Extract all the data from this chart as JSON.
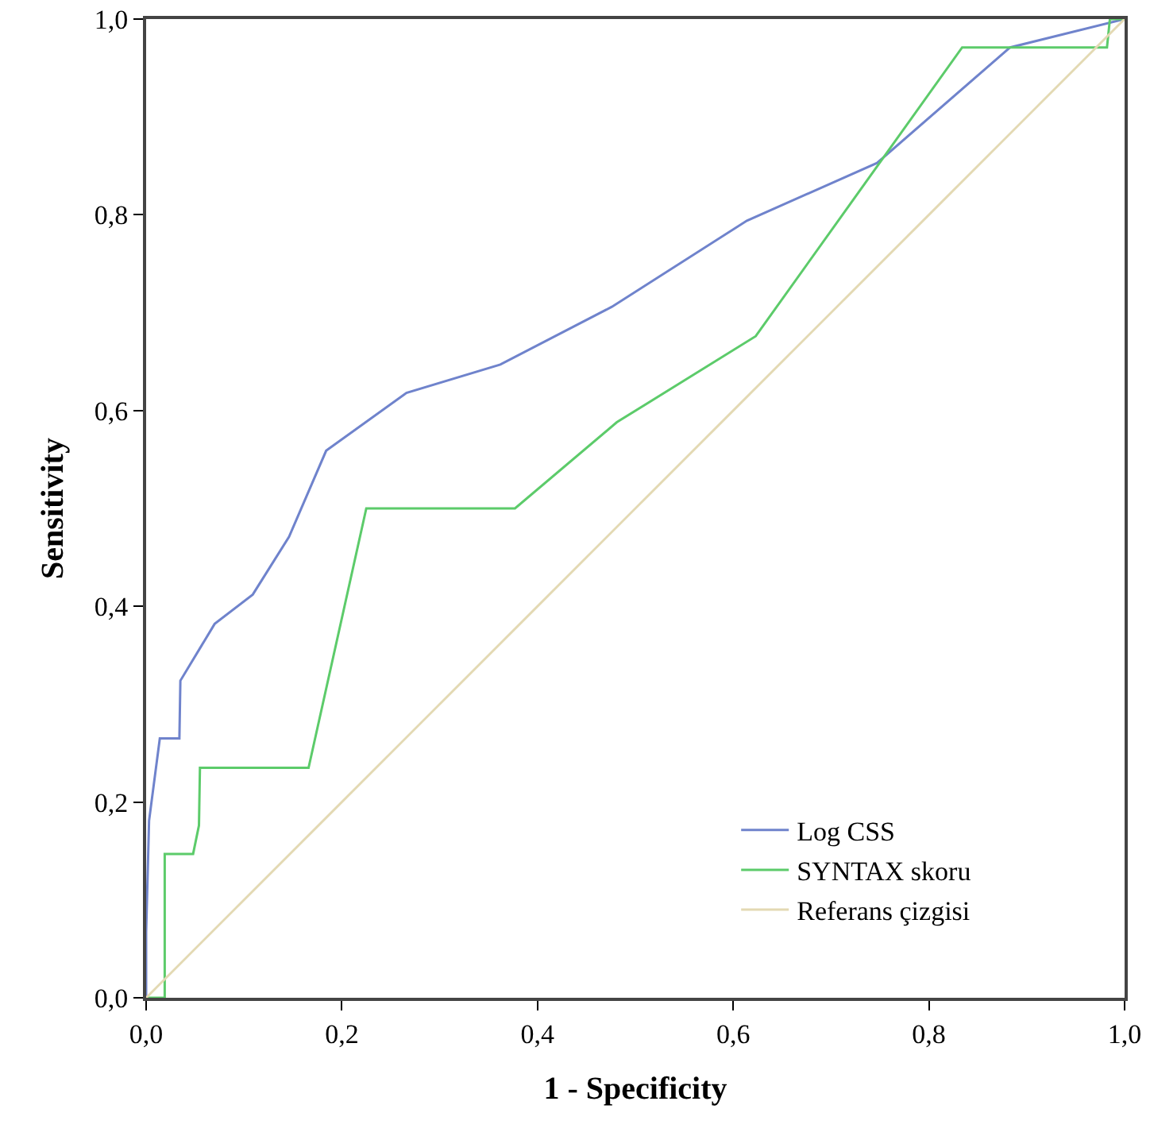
{
  "chart_data": {
    "type": "line",
    "xlabel": "1 - Specificity",
    "ylabel": "Sensitivity",
    "xlim": [
      0,
      1
    ],
    "ylim": [
      0,
      1
    ],
    "xticks": [
      {
        "value": 0,
        "label": "0,0"
      },
      {
        "value": 0.2,
        "label": "0,2"
      },
      {
        "value": 0.4,
        "label": "0,4"
      },
      {
        "value": 0.6,
        "label": "0,6"
      },
      {
        "value": 0.8,
        "label": "0,8"
      },
      {
        "value": 1,
        "label": "1,0"
      }
    ],
    "yticks": [
      {
        "value": 0,
        "label": "0,0"
      },
      {
        "value": 0.2,
        "label": "0,2"
      },
      {
        "value": 0.4,
        "label": "0,4"
      },
      {
        "value": 0.6,
        "label": "0,6"
      },
      {
        "value": 0.8,
        "label": "0,8"
      },
      {
        "value": 1,
        "label": "1,0"
      }
    ],
    "grid": false,
    "legend": "bottom right",
    "marker": "none",
    "line_style": "solid",
    "series": [
      {
        "name": "Log CSS",
        "color": "#6f83cc",
        "x": [
          0,
          0,
          0.003,
          0.014,
          0.034,
          0.035,
          0.07,
          0.109,
          0.146,
          0.184,
          0.266,
          0.362,
          0.476,
          0.614,
          0.747,
          0.883,
          1
        ],
        "values": [
          0,
          0.067,
          0.181,
          0.265,
          0.265,
          0.324,
          0.382,
          0.412,
          0.471,
          0.559,
          0.618,
          0.647,
          0.706,
          0.794,
          0.853,
          0.971,
          1
        ]
      },
      {
        "name": "SYNTAX skoru",
        "color": "#5ccb6a",
        "x": [
          0,
          0.019,
          0.019,
          0.048,
          0.054,
          0.055,
          0.166,
          0.225,
          0.377,
          0.481,
          0.623,
          0.834,
          0.982,
          0.985,
          1
        ],
        "values": [
          0,
          0,
          0.147,
          0.147,
          0.176,
          0.235,
          0.235,
          0.5,
          0.5,
          0.588,
          0.676,
          0.971,
          0.971,
          1,
          1
        ]
      },
      {
        "name": "Referans çizgisi",
        "color": "#e3d9b3",
        "x": [
          0,
          1
        ],
        "values": [
          0,
          1
        ]
      }
    ]
  }
}
